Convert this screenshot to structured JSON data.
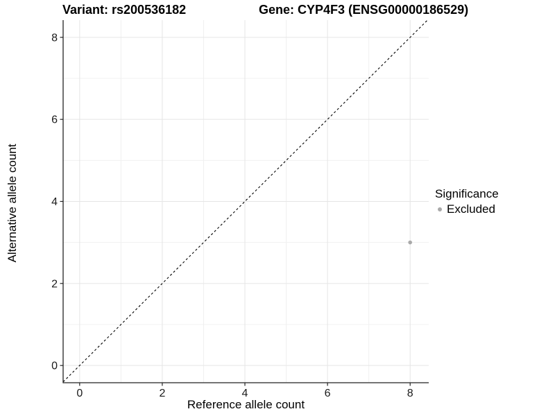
{
  "titles": {
    "variant": "Variant: rs200536182",
    "gene": "Gene: CYP4F3 (ENSG00000186529)"
  },
  "axes": {
    "x_label": "Reference allele count",
    "y_label": "Alternative allele count"
  },
  "legend": {
    "title": "Significance",
    "items": [
      {
        "label": "Excluded",
        "color": "#a9a9a9"
      }
    ]
  },
  "chart_data": {
    "type": "scatter",
    "title_left": "Variant: rs200536182",
    "title_right": "Gene: CYP4F3 (ENSG00000186529)",
    "xlabel": "Reference allele count",
    "ylabel": "Alternative allele count",
    "series": [
      {
        "name": "Excluded",
        "color": "#a9a9a9",
        "points": [
          {
            "x": 8,
            "y": 3
          }
        ]
      }
    ],
    "reference_line": {
      "type": "identity",
      "slope": 1,
      "intercept": 0,
      "style": "dashed",
      "color": "#000000"
    },
    "xlim": [
      -0.4,
      8.45
    ],
    "ylim": [
      -0.42,
      8.42
    ],
    "x_ticks": [
      0,
      2,
      4,
      6,
      8
    ],
    "y_ticks": [
      0,
      2,
      4,
      6,
      8
    ],
    "x_minor_ticks": [
      1,
      3,
      5,
      7
    ],
    "y_minor_ticks": [
      1,
      3,
      5,
      7
    ],
    "grid": {
      "major_color": "#e5e5e5",
      "minor_color": "#f0f0f0",
      "on": true
    },
    "axis_color": "#222222",
    "legend_position": "right"
  }
}
